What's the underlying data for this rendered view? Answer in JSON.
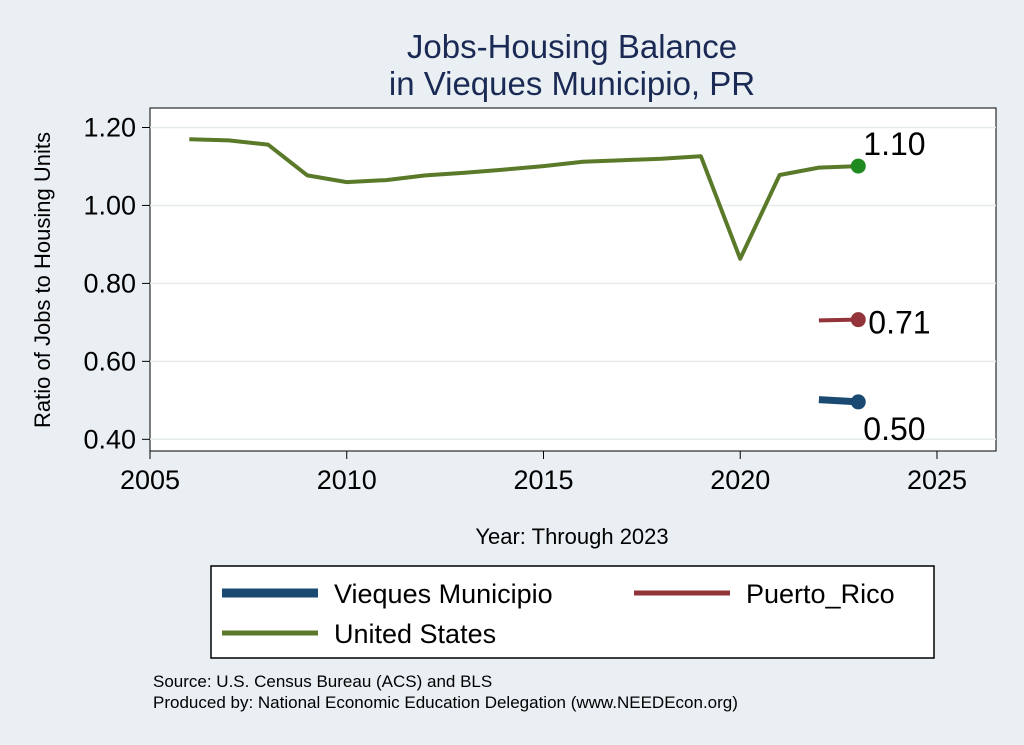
{
  "chart_data": {
    "type": "line",
    "title": [
      "Jobs-Housing Balance",
      "in Vieques Municipio, PR"
    ],
    "xlabel": "Year: Through 2023",
    "ylabel": "Ratio of Jobs to Housing Units",
    "xlim": [
      2005,
      2026.5
    ],
    "ylim": [
      0.37,
      1.25
    ],
    "x_ticks": [
      2005,
      2010,
      2015,
      2020,
      2025
    ],
    "y_ticks": [
      0.4,
      0.6,
      0.8,
      1.0,
      1.2
    ],
    "y_tick_labels": [
      "0.40",
      "0.60",
      "0.80",
      "1.00",
      "1.20"
    ],
    "grid": true,
    "legend_position": "bottom",
    "series": [
      {
        "name": "Vieques Municipio",
        "color": "#1a4a72",
        "x": [
          2022,
          2023
        ],
        "values": [
          0.502,
          0.496
        ],
        "end_label": "0.50"
      },
      {
        "name": "Puerto_Rico",
        "color": "#93343a",
        "x": [
          2022,
          2023
        ],
        "values": [
          0.705,
          0.707
        ],
        "end_label": "0.71"
      },
      {
        "name": "United States",
        "color": "#5a7a2a",
        "marker_color": "#1f8a1f",
        "x": [
          2006,
          2007,
          2008,
          2009,
          2010,
          2011,
          2012,
          2013,
          2014,
          2015,
          2016,
          2017,
          2018,
          2019,
          2020,
          2021,
          2022,
          2023
        ],
        "values": [
          1.17,
          1.167,
          1.156,
          1.077,
          1.06,
          1.065,
          1.077,
          1.084,
          1.092,
          1.101,
          1.112,
          1.116,
          1.12,
          1.126,
          0.863,
          1.078,
          1.097,
          1.101
        ],
        "end_label": "1.10"
      }
    ],
    "source_lines": [
      "Source: U.S. Census Bureau (ACS) and BLS",
      "Produced by: National Economic Education Delegation (www.NEEDEcon.org)"
    ]
  }
}
